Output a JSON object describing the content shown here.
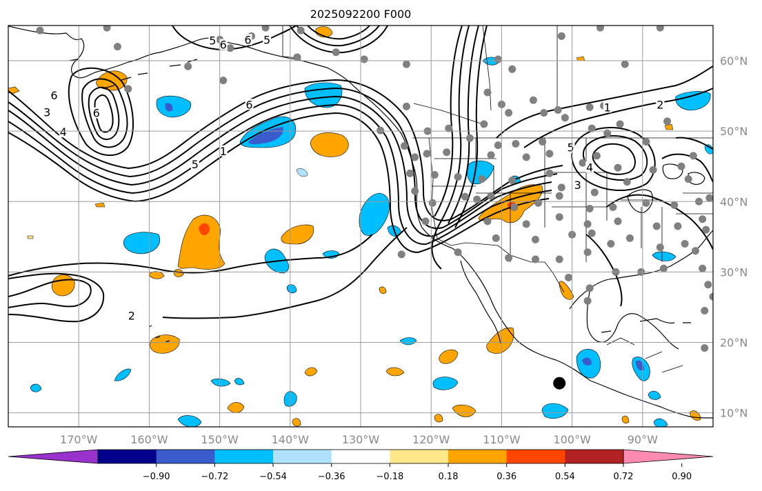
{
  "title": "2025092200 F000",
  "map": {
    "lon_range": [
      -180,
      -80
    ],
    "lat_range": [
      8,
      65
    ],
    "lon_ticks": [
      {
        "value": -170,
        "label": "170°W"
      },
      {
        "value": -160,
        "label": "160°W"
      },
      {
        "value": -150,
        "label": "150°W"
      },
      {
        "value": -140,
        "label": "140°W"
      },
      {
        "value": -130,
        "label": "130°W"
      },
      {
        "value": -120,
        "label": "120°W"
      },
      {
        "value": -110,
        "label": "110°W"
      },
      {
        "value": -100,
        "label": "100°W"
      },
      {
        "value": -90,
        "label": "90°W"
      }
    ],
    "lat_ticks": [
      {
        "value": 60,
        "label": "60°N"
      },
      {
        "value": 50,
        "label": "50°N"
      },
      {
        "value": 40,
        "label": "40°N"
      },
      {
        "value": 30,
        "label": "30°N"
      },
      {
        "value": 20,
        "label": "20°N"
      },
      {
        "value": 10,
        "label": "10°N"
      }
    ],
    "contour_labels": [
      {
        "text": "5",
        "lon": -151,
        "lat": 62.8
      },
      {
        "text": "6",
        "lon": -149.5,
        "lat": 62.2
      },
      {
        "text": "6",
        "lon": -146,
        "lat": 62.9
      },
      {
        "text": "5",
        "lon": -143.3,
        "lat": 62.9
      },
      {
        "text": "3",
        "lon": -174.5,
        "lat": 52.6
      },
      {
        "text": "6",
        "lon": -173.5,
        "lat": 55.0
      },
      {
        "text": "6",
        "lon": -167.5,
        "lat": 52.5
      },
      {
        "text": "4",
        "lon": -172.2,
        "lat": 49.8
      },
      {
        "text": "6",
        "lon": -145.8,
        "lat": 53.7
      },
      {
        "text": "5",
        "lon": -153.5,
        "lat": 45.2
      },
      {
        "text": "1",
        "lon": -149.5,
        "lat": 47.1
      },
      {
        "text": "1",
        "lon": -95.0,
        "lat": 53.3
      },
      {
        "text": "2",
        "lon": -87.5,
        "lat": 53.7
      },
      {
        "text": "5",
        "lon": -100.2,
        "lat": 47.6
      },
      {
        "text": "4",
        "lon": -97.5,
        "lat": 44.8
      },
      {
        "text": "3",
        "lon": -99.2,
        "lat": 42.3
      },
      {
        "text": "2",
        "lon": -162.5,
        "lat": 23.7
      }
    ],
    "station_markers": [
      {
        "lon": -175.5,
        "lat": 64.3
      },
      {
        "lon": -166,
        "lat": 64.7
      },
      {
        "lon": -150,
        "lat": 63.0
      },
      {
        "lon": -145.5,
        "lat": 63.5
      },
      {
        "lon": -143.5,
        "lat": 64.7
      },
      {
        "lon": -138.5,
        "lat": 64.3
      },
      {
        "lon": -164.5,
        "lat": 62.0
      },
      {
        "lon": -148.5,
        "lat": 61.8
      },
      {
        "lon": -154.5,
        "lat": 59.2
      },
      {
        "lon": -163,
        "lat": 56.0
      },
      {
        "lon": -149.5,
        "lat": 57.2
      },
      {
        "lon": -139,
        "lat": 60.5
      },
      {
        "lon": -133.5,
        "lat": 61.2
      },
      {
        "lon": -129.5,
        "lat": 60.2
      },
      {
        "lon": -123.5,
        "lat": 59.5
      },
      {
        "lon": -110.5,
        "lat": 60.2
      },
      {
        "lon": -108.5,
        "lat": 58.8
      },
      {
        "lon": -101.5,
        "lat": 63.5
      },
      {
        "lon": -96,
        "lat": 64.7
      },
      {
        "lon": -87.5,
        "lat": 64.7
      },
      {
        "lon": -92.5,
        "lat": 59.5
      },
      {
        "lon": -123.5,
        "lat": 53.5
      },
      {
        "lon": -112,
        "lat": 55.5
      },
      {
        "lon": -110,
        "lat": 53.8
      },
      {
        "lon": -109,
        "lat": 52.6
      },
      {
        "lon": -105.5,
        "lat": 54.4
      },
      {
        "lon": -104,
        "lat": 52.6
      },
      {
        "lon": -102,
        "lat": 53.0
      },
      {
        "lon": -101,
        "lat": 51.9
      },
      {
        "lon": -97.5,
        "lat": 53.4
      },
      {
        "lon": -95.5,
        "lat": 53.6
      },
      {
        "lon": -93.2,
        "lat": 51.0
      },
      {
        "lon": -86.5,
        "lat": 51.4
      },
      {
        "lon": -127.2,
        "lat": 50.1
      },
      {
        "lon": -120.5,
        "lat": 50.0
      },
      {
        "lon": -117.5,
        "lat": 50.4
      },
      {
        "lon": -114.5,
        "lat": 49.0
      },
      {
        "lon": -112.5,
        "lat": 51.0
      },
      {
        "lon": -110.5,
        "lat": 48.0
      },
      {
        "lon": -108,
        "lat": 48.2
      },
      {
        "lon": -104.2,
        "lat": 48.5
      },
      {
        "lon": -97.2,
        "lat": 50.4
      },
      {
        "lon": -95,
        "lat": 49.7
      },
      {
        "lon": -89.5,
        "lat": 48.5
      },
      {
        "lon": -123.8,
        "lat": 47.9
      },
      {
        "lon": -122.3,
        "lat": 46.3
      },
      {
        "lon": -120.6,
        "lat": 46.8
      },
      {
        "lon": -117.8,
        "lat": 47.0
      },
      {
        "lon": -111.5,
        "lat": 46.6
      },
      {
        "lon": -106.5,
        "lat": 46.3
      },
      {
        "lon": -103.2,
        "lat": 46.8
      },
      {
        "lon": -98.5,
        "lat": 45.5
      },
      {
        "lon": -96.5,
        "lat": 46.5
      },
      {
        "lon": -93.5,
        "lat": 44.8
      },
      {
        "lon": -88.5,
        "lat": 44.5
      },
      {
        "lon": -84.5,
        "lat": 45.0
      },
      {
        "lon": -82.8,
        "lat": 46.5
      },
      {
        "lon": -123.0,
        "lat": 44.0
      },
      {
        "lon": -119.5,
        "lat": 43.8
      },
      {
        "lon": -116.2,
        "lat": 43.5
      },
      {
        "lon": -112.8,
        "lat": 43.2
      },
      {
        "lon": -108.5,
        "lat": 43.0
      },
      {
        "lon": -103.2,
        "lat": 44.0
      },
      {
        "lon": -101.5,
        "lat": 42.0
      },
      {
        "lon": -96.8,
        "lat": 41.3
      },
      {
        "lon": -92.2,
        "lat": 42.8
      },
      {
        "lon": -83.5,
        "lat": 43.2
      },
      {
        "lon": -122.3,
        "lat": 41.5
      },
      {
        "lon": -119.8,
        "lat": 39.8
      },
      {
        "lon": -115.2,
        "lat": 40.7
      },
      {
        "lon": -113.5,
        "lat": 40.3
      },
      {
        "lon": -111.5,
        "lat": 40.8
      },
      {
        "lon": -108.2,
        "lat": 39.2
      },
      {
        "lon": -104.8,
        "lat": 39.8
      },
      {
        "lon": -101.8,
        "lat": 40.8
      },
      {
        "lon": -97.5,
        "lat": 39.0
      },
      {
        "lon": -94.2,
        "lat": 39.2
      },
      {
        "lon": -89.5,
        "lat": 39.8
      },
      {
        "lon": -85.5,
        "lat": 39.5
      },
      {
        "lon": -82.0,
        "lat": 40.0
      },
      {
        "lon": -80.5,
        "lat": 40.5
      },
      {
        "lon": -120.8,
        "lat": 37.2
      },
      {
        "lon": -112.0,
        "lat": 37.2
      },
      {
        "lon": -106.5,
        "lat": 36.8
      },
      {
        "lon": -101.8,
        "lat": 37.8
      },
      {
        "lon": -97.8,
        "lat": 36.8
      },
      {
        "lon": -93.5,
        "lat": 37.2
      },
      {
        "lon": -88.0,
        "lat": 36.5
      },
      {
        "lon": -85.0,
        "lat": 36.5
      },
      {
        "lon": -81.5,
        "lat": 37.5
      },
      {
        "lon": -81.0,
        "lat": 36.0
      },
      {
        "lon": -116.2,
        "lat": 32.8
      },
      {
        "lon": -110.8,
        "lat": 34.8
      },
      {
        "lon": -105.2,
        "lat": 34.6
      },
      {
        "lon": -100.0,
        "lat": 35.3
      },
      {
        "lon": -97.2,
        "lat": 35.5
      },
      {
        "lon": -94.5,
        "lat": 34.0
      },
      {
        "lon": -91.8,
        "lat": 34.8
      },
      {
        "lon": -87.5,
        "lat": 33.5
      },
      {
        "lon": -84.0,
        "lat": 34.0
      },
      {
        "lon": -82.5,
        "lat": 33.0
      },
      {
        "lon": -124.2,
        "lat": 32.5
      },
      {
        "lon": -109.0,
        "lat": 32.0
      },
      {
        "lon": -105.2,
        "lat": 31.8
      },
      {
        "lon": -101.8,
        "lat": 31.8
      },
      {
        "lon": -97.8,
        "lat": 32.8
      },
      {
        "lon": -93.8,
        "lat": 30.0
      },
      {
        "lon": -90.2,
        "lat": 30.0
      },
      {
        "lon": -87.0,
        "lat": 30.5
      },
      {
        "lon": -81.5,
        "lat": 30.5
      },
      {
        "lon": -100.5,
        "lat": 29.2
      },
      {
        "lon": -97.5,
        "lat": 27.7
      },
      {
        "lon": -97.8,
        "lat": 25.9
      },
      {
        "lon": -80.7,
        "lat": 28.2
      },
      {
        "lon": -80.0,
        "lat": 26.5
      },
      {
        "lon": -81.2,
        "lat": 24.5
      },
      {
        "lon": -81.2,
        "lat": 19.2
      }
    ],
    "marker_black": {
      "lon": -101.8,
      "lat": 14.2
    }
  },
  "colorbar": {
    "colors": [
      "#9932cc",
      "#00008b",
      "#3a5bcc",
      "#00bfff",
      "#b0e2ff",
      "#ffffff",
      "#ffe88a",
      "#ffa500",
      "#ff4500",
      "#b22222",
      "#ff8cb0"
    ],
    "ticks": [
      -0.9,
      -0.72,
      -0.54,
      -0.36,
      -0.18,
      0.18,
      0.36,
      0.54,
      0.72,
      0.9
    ],
    "tick_labels": [
      "−0.90",
      "−0.72",
      "−0.54",
      "−0.36",
      "−0.18",
      "0.18",
      "0.36",
      "0.54",
      "0.72",
      "0.90"
    ]
  }
}
